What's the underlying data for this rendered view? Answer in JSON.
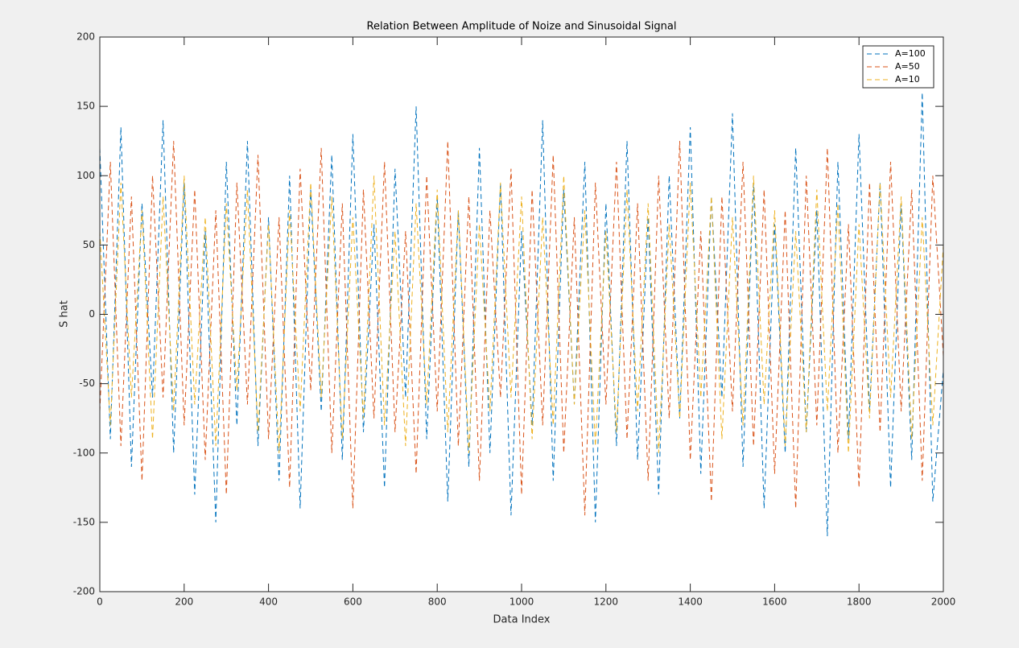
{
  "chart_data": {
    "type": "line",
    "title": "Relation Between Amplitude of Noize and Sinusoidal Signal",
    "x_label": "Data Index",
    "y_label": "S hat",
    "xlim": [
      0,
      2000
    ],
    "ylim": [
      -200,
      200
    ],
    "xticks": [
      0,
      200,
      400,
      600,
      800,
      1000,
      1200,
      1400,
      1600,
      1800,
      2000
    ],
    "yticks": [
      -200,
      -150,
      -100,
      -50,
      0,
      50,
      100,
      150,
      200
    ],
    "grid": false,
    "legend": "top-right",
    "line_style": "dashed",
    "x": [
      0,
      25,
      50,
      75,
      100,
      125,
      150,
      175,
      200,
      225,
      250,
      275,
      300,
      325,
      350,
      375,
      400,
      425,
      450,
      475,
      500,
      525,
      550,
      575,
      600,
      625,
      650,
      675,
      700,
      725,
      750,
      775,
      800,
      825,
      850,
      875,
      900,
      925,
      950,
      975,
      1000,
      1025,
      1050,
      1075,
      1100,
      1125,
      1150,
      1175,
      1200,
      1225,
      1250,
      1275,
      1300,
      1325,
      1350,
      1375,
      1400,
      1425,
      1450,
      1475,
      1500,
      1525,
      1550,
      1575,
      1600,
      1625,
      1650,
      1675,
      1700,
      1725,
      1750,
      1775,
      1800,
      1825,
      1850,
      1875,
      1900,
      1925,
      1950,
      1975,
      2000
    ],
    "series": [
      {
        "name": "A=100",
        "color": "#0072bd",
        "values": [
          120,
          -90,
          135,
          -110,
          80,
          -60,
          140,
          -100,
          95,
          -130,
          60,
          -150,
          110,
          -80,
          125,
          -95,
          70,
          -120,
          100,
          -140,
          90,
          -70,
          115,
          -105,
          130,
          -85,
          65,
          -125,
          105,
          -60,
          150,
          -90,
          85,
          -135,
          75,
          -110,
          120,
          -100,
          95,
          -145,
          60,
          -80,
          140,
          -120,
          90,
          -65,
          110,
          -150,
          80,
          -95,
          125,
          -105,
          70,
          -130,
          100,
          -75,
          135,
          -115,
          85,
          -60,
          145,
          -110,
          95,
          -140,
          65,
          -100,
          120,
          -85,
          75,
          -160,
          110,
          -90,
          130,
          -70,
          95,
          -125,
          80,
          -105,
          160,
          -135,
          -40
        ]
      },
      {
        "name": "A=50",
        "color": "#d95319",
        "values": [
          -70,
          110,
          -95,
          85,
          -120,
          100,
          -60,
          125,
          -80,
          90,
          -105,
          75,
          -130,
          95,
          -65,
          115,
          -90,
          70,
          -125,
          105,
          -55,
          120,
          -100,
          80,
          -140,
          90,
          -75,
          110,
          -85,
          60,
          -115,
          100,
          -70,
          125,
          -95,
          85,
          -120,
          75,
          -60,
          105,
          -130,
          90,
          -80,
          115,
          -100,
          70,
          -145,
          95,
          -65,
          110,
          -90,
          80,
          -120,
          100,
          -75,
          125,
          -105,
          60,
          -135,
          85,
          -70,
          110,
          -95,
          90,
          -115,
          75,
          -140,
          100,
          -80,
          120,
          -100,
          65,
          -125,
          95,
          -85,
          110,
          -70,
          90,
          -120,
          100,
          -30
        ]
      },
      {
        "name": "A=10",
        "color": "#edb120",
        "values": [
          60,
          -80,
          95,
          -60,
          75,
          -90,
          85,
          -70,
          100,
          -65,
          70,
          -95,
          80,
          -55,
          90,
          -85,
          65,
          -100,
          75,
          -70,
          95,
          -60,
          85,
          -90,
          70,
          -75,
          100,
          -80,
          60,
          -95,
          80,
          -65,
          90,
          -85,
          75,
          -100,
          65,
          -70,
          95,
          -60,
          85,
          -90,
          70,
          -80,
          100,
          -65,
          75,
          -95,
          60,
          -85,
          90,
          -70,
          80,
          -100,
          65,
          -75,
          95,
          -60,
          85,
          -90,
          70,
          -80,
          100,
          -65,
          75,
          -95,
          60,
          -85,
          90,
          -70,
          80,
          -100,
          65,
          -75,
          95,
          -60,
          85,
          -90,
          70,
          -80,
          50
        ]
      }
    ]
  }
}
